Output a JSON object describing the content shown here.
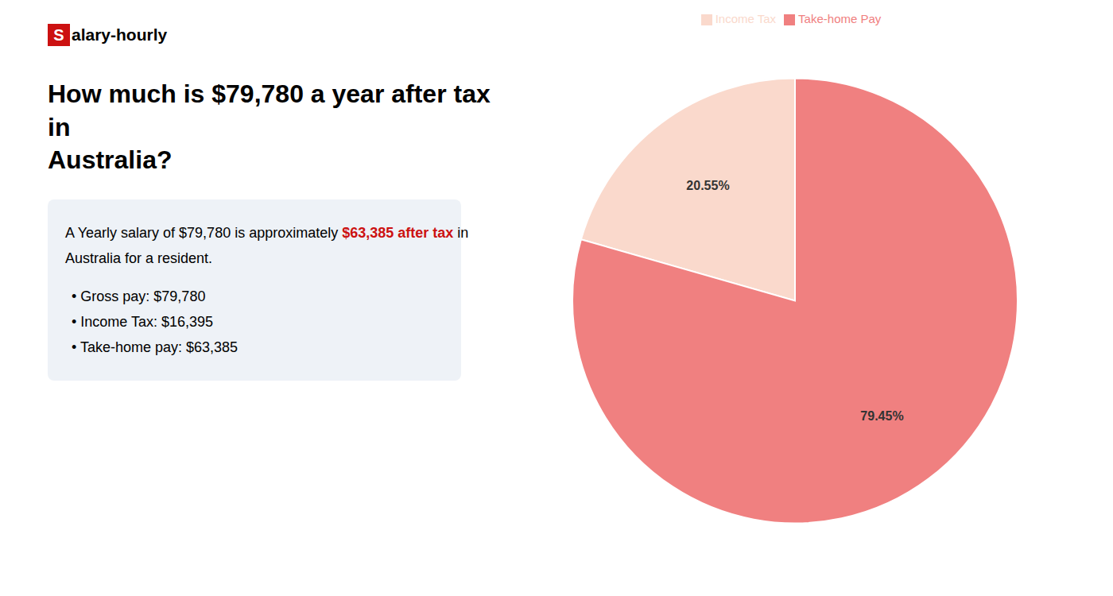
{
  "chart_data": {
    "type": "pie",
    "title": "How much is $79,780 a year after tax in\nAustralia?",
    "annotations": [
      [
        {
          "text": "S",
          "color": "#cc1111"
        },
        {
          "text": "alary-hourly"
        }
      ],
      [
        {
          "text": "A Yearly salary of $79,780 is approximately "
        },
        {
          "text": "$63,385 after tax",
          "color": "#cc1111"
        },
        {
          "text": " in"
        }
      ],
      [
        {
          "text": "Australia for a resident."
        }
      ],
      [
        {
          "text": "• Gross pay: $79,780"
        }
      ],
      [
        {
          "text": "• Income Tax: $16,395"
        }
      ],
      [
        {
          "text": "• Take-home pay: $63,385"
        }
      ]
    ],
    "categories": [
      "Income Tax",
      "Take-home Pay"
    ],
    "values": [
      20.55,
      79.45
    ],
    "value_labels": [
      "20.55%",
      "79.45%"
    ],
    "colors": [
      "#fad9cc",
      "#f08080"
    ],
    "data_labels": true,
    "legend": "top"
  }
}
